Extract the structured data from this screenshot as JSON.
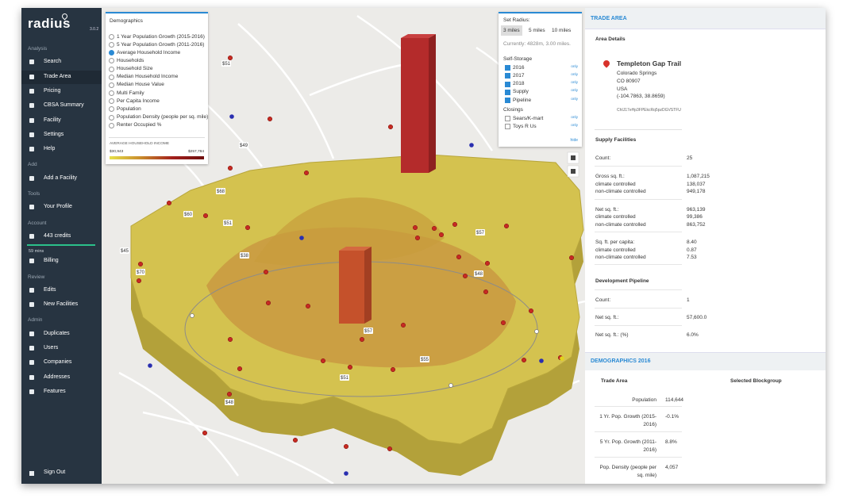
{
  "sidebar": {
    "logo": "radius",
    "version": "3.0.2",
    "groups": [
      {
        "title": "Analysis",
        "items": [
          "Search",
          "Trade Area",
          "Pricing",
          "CBSA Summary",
          "Facility",
          "Settings",
          "Help"
        ]
      },
      {
        "title": "Add",
        "items": [
          "Add a Facility"
        ]
      },
      {
        "title": "Tools",
        "items": [
          "Your Profile"
        ]
      },
      {
        "title": "Account",
        "items": [
          "443 credits",
          "Billing"
        ],
        "remaining": "59 mins"
      },
      {
        "title": "Review",
        "items": [
          "Edits",
          "New Facilities"
        ]
      },
      {
        "title": "Admin",
        "items": [
          "Duplicates",
          "Users",
          "Companies",
          "Addresses",
          "Features"
        ]
      }
    ],
    "sign_out": "Sign Out"
  },
  "demographics_panel": {
    "title": "Demographics",
    "options": [
      "1 Year Population Growth (2015-2016)",
      "5 Year Population Growth (2011-2016)",
      "Average Household Income",
      "Households",
      "Household Size",
      "Median Household Income",
      "Median House Value",
      "Multi Family",
      "Per Capita Income",
      "Population",
      "Population Density (people per sq. mile)",
      "Renter Occupied %"
    ],
    "legend_title": "AVERAGE HOUSEHOLD INCOME",
    "legend_min": "$30,943",
    "legend_max": "$257,784"
  },
  "radius_panel": {
    "title": "Set Radius:",
    "buttons": [
      "3 miles",
      "5 miles",
      "10 miles"
    ],
    "current": "Currently: 4828m, 3.00 miles.",
    "self_storage": "Self-Storage",
    "storage_items": [
      "2016",
      "2017",
      "2018",
      "Supply",
      "Pipeline"
    ],
    "closings": "Closings",
    "closing_items": [
      "Sears/K-mart",
      "Toys R Us"
    ],
    "only": "only",
    "hide": "hide"
  },
  "map": {
    "price_labels": [
      "$51",
      "$49",
      "$68",
      "$60",
      "$51",
      "$45",
      "$57",
      "$38",
      "$70",
      "$48",
      "$57",
      "$55",
      "$51",
      "$48"
    ]
  },
  "trade_area": {
    "header": "TRADE AREA",
    "area_details": "Area Details",
    "place_name": "Templeton Gap Trail",
    "address": [
      "Colorado Springs",
      "CO 80907",
      "USA",
      "(-104.7863, 38.8659)"
    ],
    "place_id": "ChIJ17eHp3FPEkcRq5pzDGVSTFU",
    "supply_title": "Supply Facilities",
    "supply_rows": [
      [
        "Count:",
        "25"
      ],
      [
        "Gross sq. ft.:",
        "1,087,215"
      ],
      [
        "climate controlled",
        "138,037"
      ],
      [
        "non-climate controlled",
        "949,178"
      ],
      [
        "Net sq. ft.:",
        "963,139"
      ],
      [
        "climate controlled",
        "99,386"
      ],
      [
        "non-climate controlled",
        "863,752"
      ],
      [
        "Sq. ft. per capita:",
        "8.40"
      ],
      [
        "climate controlled",
        "0.87"
      ],
      [
        "non-climate controlled",
        "7.53"
      ]
    ],
    "pipeline_title": "Development Pipeline",
    "pipeline_rows": [
      [
        "Count:",
        "1"
      ],
      [
        "Net sq. ft.:",
        "57,600.0"
      ],
      [
        "Net sq. ft.: (%)",
        "6.0%"
      ]
    ]
  },
  "demographics": {
    "header": "DEMOGRAPHICS 2016",
    "columns": [
      "Trade Area",
      "Selected Blockgroup"
    ],
    "rows": [
      [
        "Population",
        "114,644"
      ],
      [
        "1 Yr. Pop. Growth (2015-2016)",
        "-0.1%"
      ],
      [
        "5 Yr. Pop. Growth (2011-2016)",
        "8.8%"
      ],
      [
        "Pop. Density (people per sq. mile)",
        "4,057"
      ]
    ]
  }
}
